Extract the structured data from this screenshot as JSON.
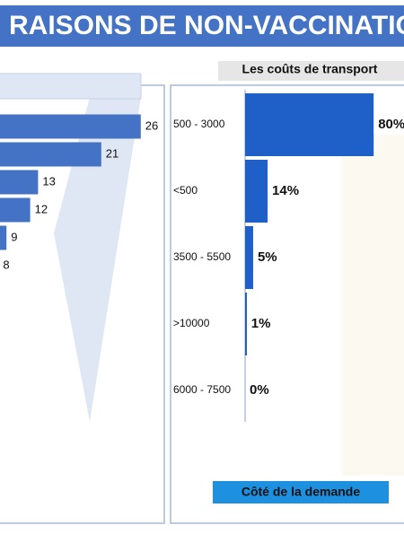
{
  "title": "RAISONS DE NON-VACCINATIO",
  "chart_data": [
    {
      "type": "bar",
      "orientation": "horizontal",
      "color": "#4472c4",
      "categories": [
        null,
        null,
        null,
        null,
        null,
        null
      ],
      "values": [
        26,
        21,
        13,
        12,
        9,
        8
      ]
    },
    {
      "type": "bar",
      "orientation": "horizontal",
      "title": "Les coûts de transport",
      "color": "#1f5fc8",
      "categories": [
        "500 - 3000",
        "<500",
        "3500 - 5500",
        ">10000",
        "6000 - 7500"
      ],
      "values": [
        80,
        14,
        5,
        1,
        0
      ],
      "value_labels": [
        "80%",
        "14%",
        "5%",
        "1%",
        "0%"
      ]
    }
  ],
  "button": "Côté de la demande"
}
